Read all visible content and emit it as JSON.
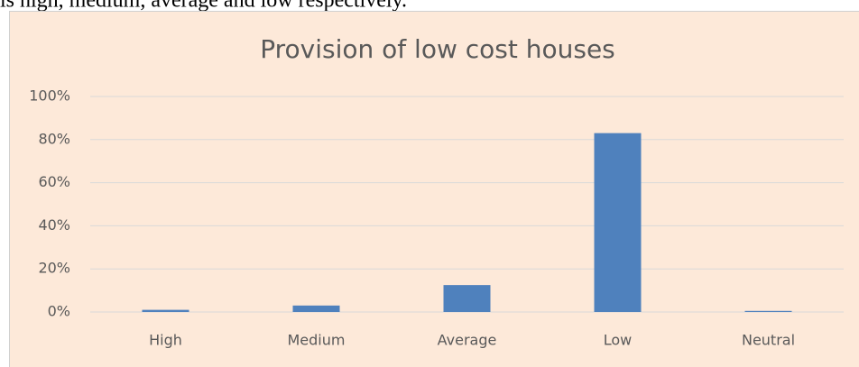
{
  "text": "is high, medium, average and low respectively.",
  "chart_data": {
    "type": "bar",
    "title": "Provision of low cost houses",
    "categories": [
      "High",
      "Medium",
      "Average",
      "Low",
      "Neutral"
    ],
    "values": [
      1,
      3,
      12.5,
      83,
      0.5
    ],
    "color": "#4f81bd",
    "ylim": [
      0,
      100
    ],
    "yticks": [
      {
        "value": 0,
        "label": "0%"
      },
      {
        "value": 20,
        "label": "20%"
      },
      {
        "value": 40,
        "label": "40%"
      },
      {
        "value": 60,
        "label": "60%"
      },
      {
        "value": 80,
        "label": "80%"
      },
      {
        "value": 100,
        "label": "100%"
      }
    ],
    "grid": true
  }
}
